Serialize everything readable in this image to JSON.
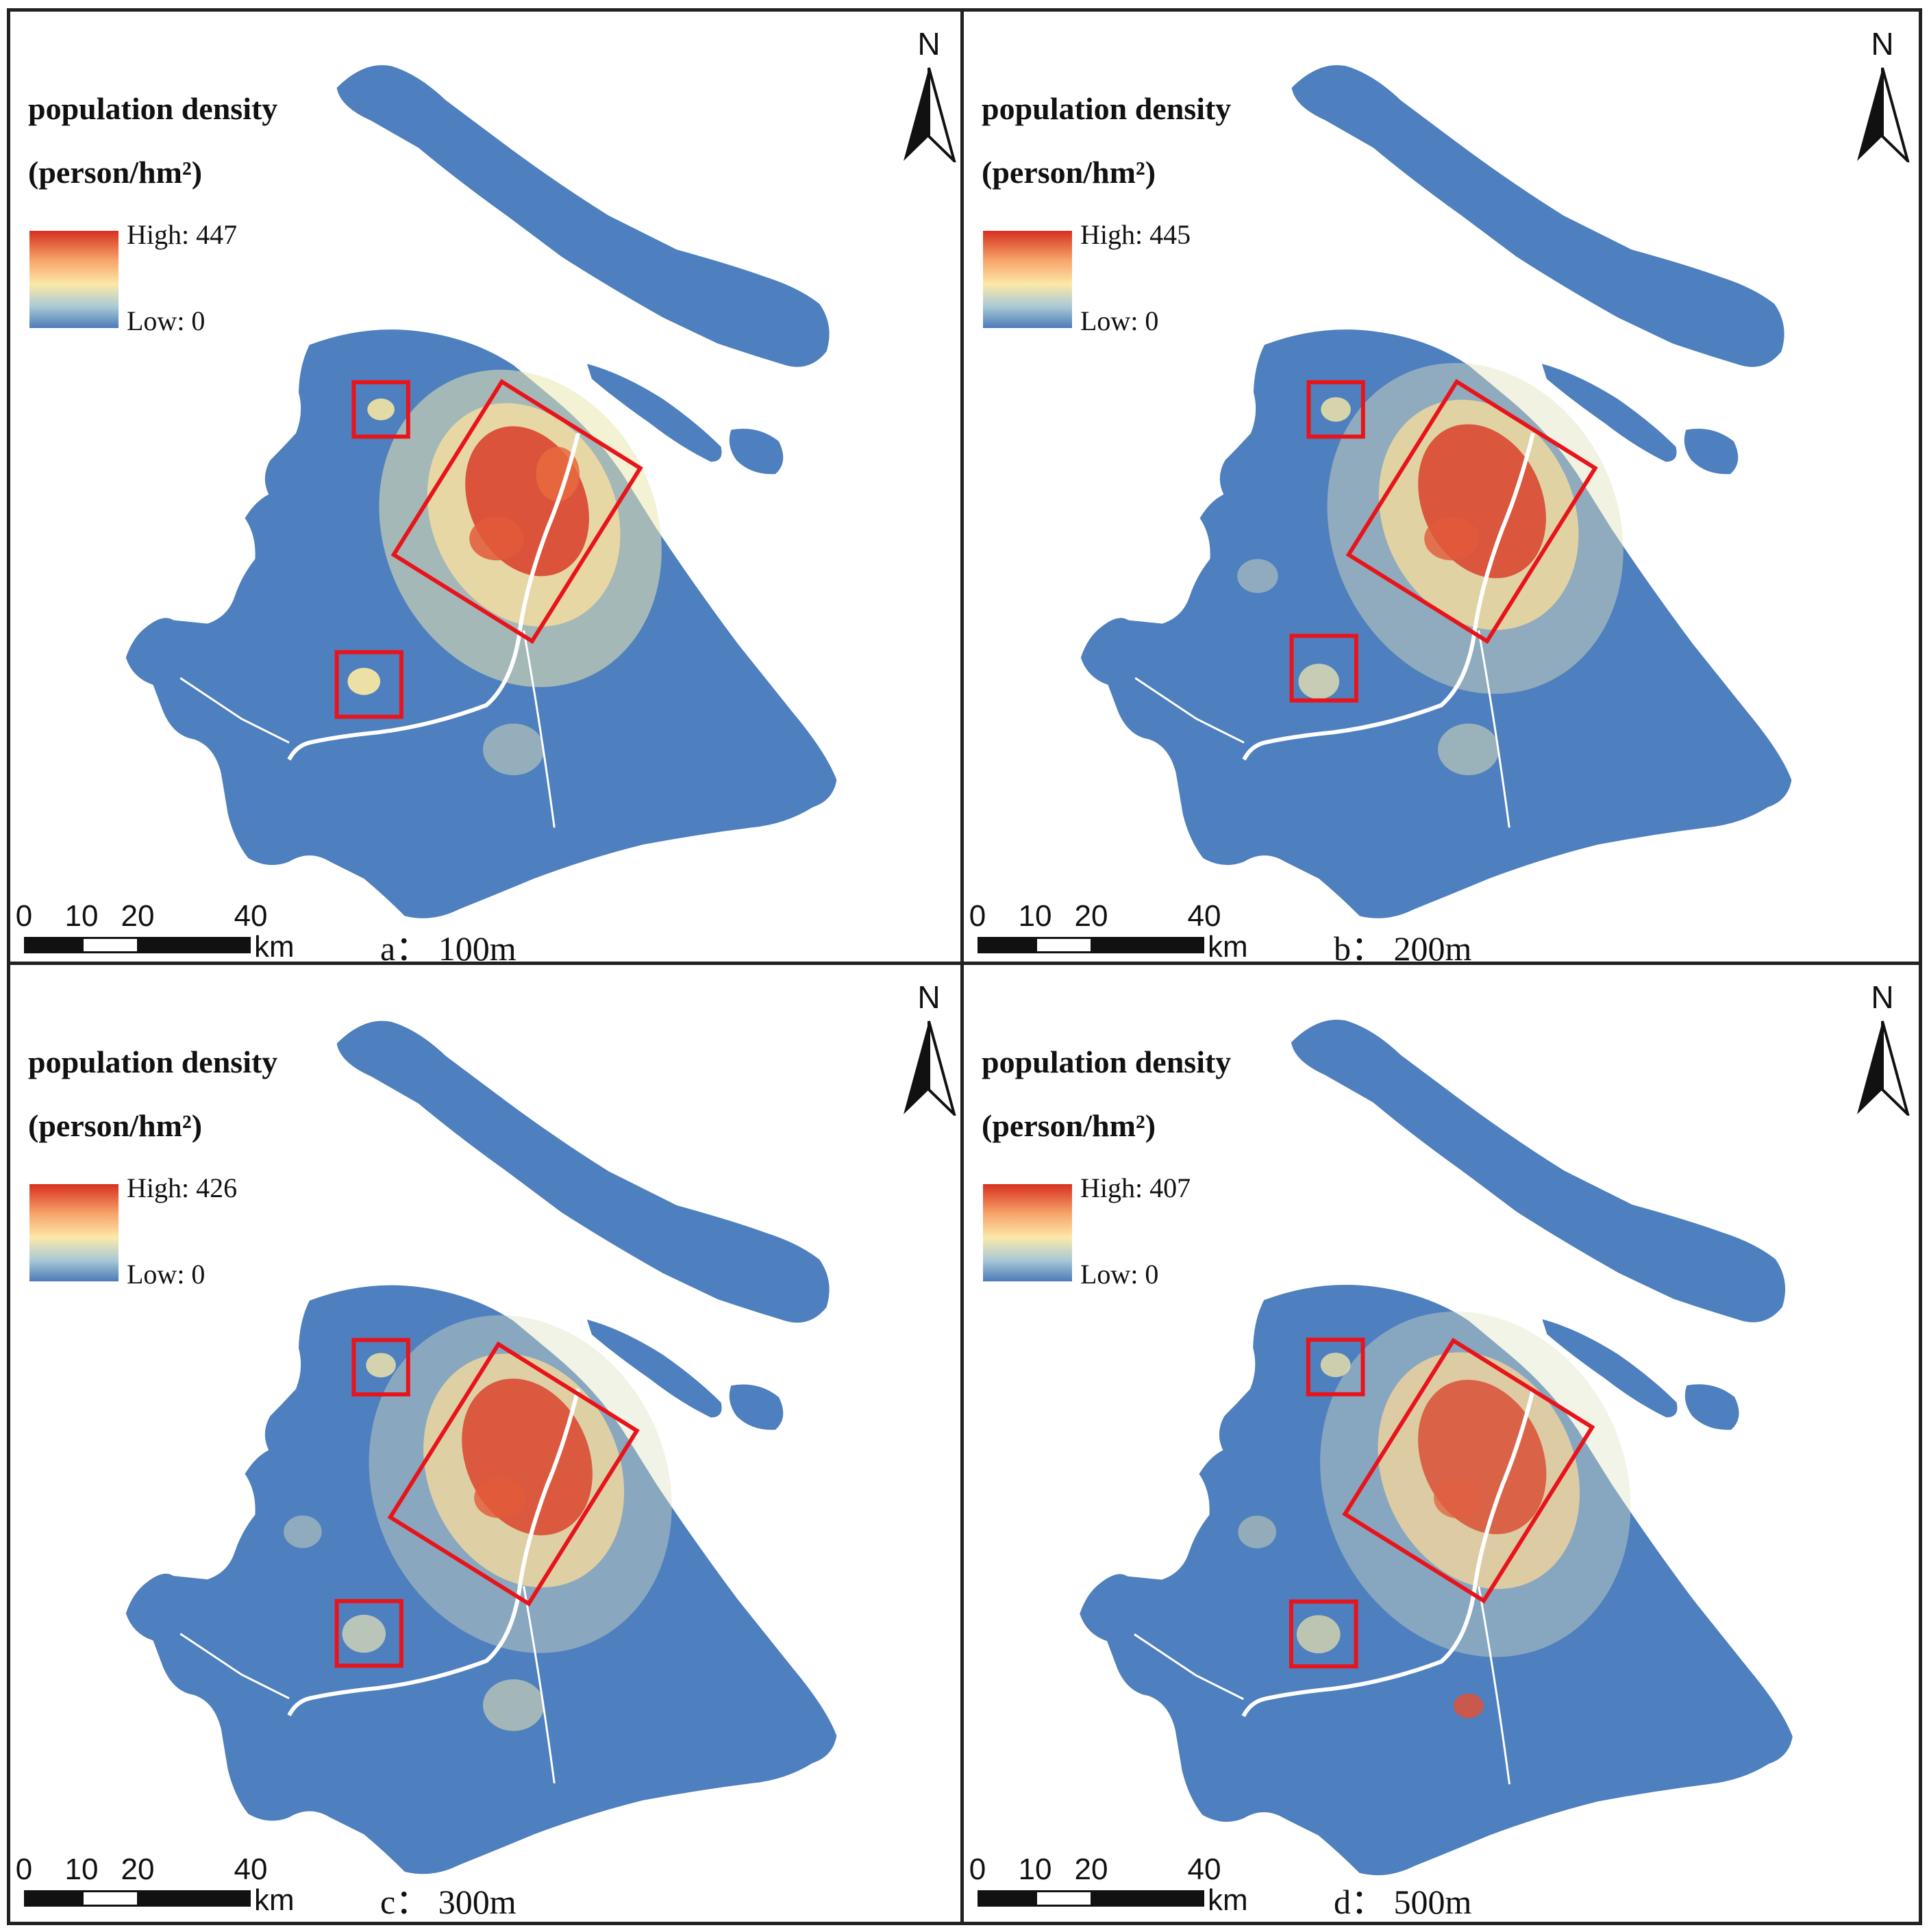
{
  "legend": {
    "title_line1": "population density",
    "title_line2": "(person/hm²)",
    "ramp_colors": [
      "#d7301f",
      "#f7a36a",
      "#fbe9a8",
      "#a9c9d6",
      "#4b7bb9"
    ]
  },
  "north_label": "N",
  "scale_bar": {
    "ticks": [
      "0",
      "10",
      "20",
      "40"
    ],
    "unit": "km"
  },
  "colors": {
    "land": "#4e7fbe",
    "frame": "#222222",
    "highlight_box": "#e8141c",
    "high": "#d7301f",
    "mid": "#f9e7a5",
    "low": "#4b7bb9"
  },
  "panels": [
    {
      "id": "a",
      "label": "a：  100m",
      "high_label": "High: 447",
      "low_label": "Low: 0"
    },
    {
      "id": "b",
      "label": "b：  200m",
      "high_label": "High: 445",
      "low_label": "Low: 0"
    },
    {
      "id": "c",
      "label": "c：  300m",
      "high_label": "High: 426",
      "low_label": "Low: 0"
    },
    {
      "id": "d",
      "label": "d：  500m",
      "high_label": "High: 407",
      "low_label": "Low: 0"
    }
  ]
}
